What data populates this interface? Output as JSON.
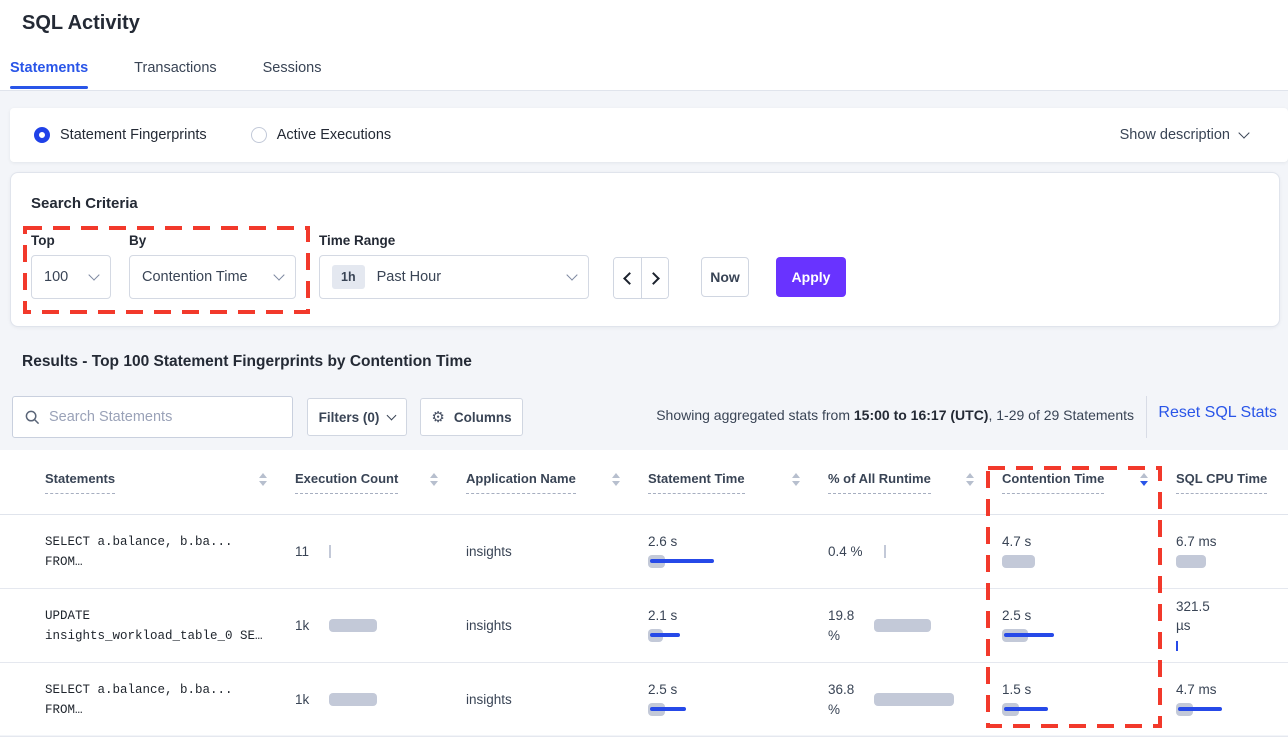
{
  "page": {
    "title": "SQL Activity"
  },
  "tabs": [
    {
      "label": "Statements",
      "active": true
    },
    {
      "label": "Transactions",
      "active": false
    },
    {
      "label": "Sessions",
      "active": false
    }
  ],
  "view_toggle": {
    "options": [
      {
        "label": "Statement Fingerprints",
        "selected": true
      },
      {
        "label": "Active Executions",
        "selected": false
      }
    ],
    "show_description": "Show description"
  },
  "search_criteria": {
    "title": "Search Criteria",
    "top": {
      "label": "Top",
      "value": "100"
    },
    "by": {
      "label": "By",
      "value": "Contention Time"
    },
    "time_range": {
      "label": "Time Range",
      "badge": "1h",
      "value": "Past Hour"
    },
    "now_label": "Now",
    "apply_label": "Apply"
  },
  "results": {
    "heading": "Results - Top 100 Statement Fingerprints by Contention Time",
    "search_placeholder": "Search Statements",
    "filters_label": "Filters (0)",
    "columns_label": "Columns",
    "stats_prefix": "Showing aggregated stats from ",
    "stats_bold": "15:00 to 16:17 (UTC)",
    "stats_suffix": ", 1-29 of 29 Statements",
    "reset_link": "Reset SQL Stats"
  },
  "table": {
    "headers": [
      {
        "label": "Statements"
      },
      {
        "label": "Execution Count"
      },
      {
        "label": "Application Name"
      },
      {
        "label": "Statement Time"
      },
      {
        "label": "% of All Runtime"
      },
      {
        "label": "Contention Time",
        "sorted": "desc"
      },
      {
        "label": "SQL CPU Time"
      }
    ],
    "rows": [
      {
        "statement": "SELECT a.balance, b.ba...\nFROM…",
        "execution_count": "11",
        "application": "insights",
        "statement_time": "2.6 s",
        "runtime_pct": "0.4 %",
        "contention_time": "4.7 s",
        "sql_cpu": "6.7 ms",
        "viz": {
          "exec": {
            "tick": "gray"
          },
          "stmt": {
            "pill": 17,
            "line": 64
          },
          "runtime": {
            "tick": "gray"
          },
          "contention": {
            "pill": 33
          },
          "cpu": {
            "pill": 30
          }
        }
      },
      {
        "statement": "UPDATE\ninsights_workload_table_0 SE…",
        "execution_count": "1k",
        "application": "insights",
        "statement_time": "2.1 s",
        "runtime_pct": "19.8 %",
        "contention_time": "2.5 s",
        "sql_cpu": "321.5 µs",
        "viz": {
          "exec": {
            "pill": 48
          },
          "stmt": {
            "pill": 15,
            "line": 30
          },
          "runtime": {
            "pill": 57
          },
          "contention": {
            "pill": 26,
            "line": 50
          },
          "cpu": {
            "tick": "blue"
          }
        }
      },
      {
        "statement": "SELECT a.balance, b.ba...\nFROM…",
        "execution_count": "1k",
        "application": "insights",
        "statement_time": "2.5 s",
        "runtime_pct": "36.8 %",
        "contention_time": "1.5 s",
        "sql_cpu": "4.7 ms",
        "viz": {
          "exec": {
            "pill": 48
          },
          "stmt": {
            "pill": 17,
            "line": 36
          },
          "runtime": {
            "pill": 80
          },
          "contention": {
            "pill": 17,
            "line": 44
          },
          "cpu": {
            "pill": 17,
            "line": 44
          }
        }
      }
    ]
  },
  "colors": {
    "accent_blue": "#2955e8",
    "bar_gray": "#c3c9d8",
    "bar_blue": "#2649e8",
    "annotation_red": "#f2392b",
    "apply_purple": "#6933ff"
  }
}
